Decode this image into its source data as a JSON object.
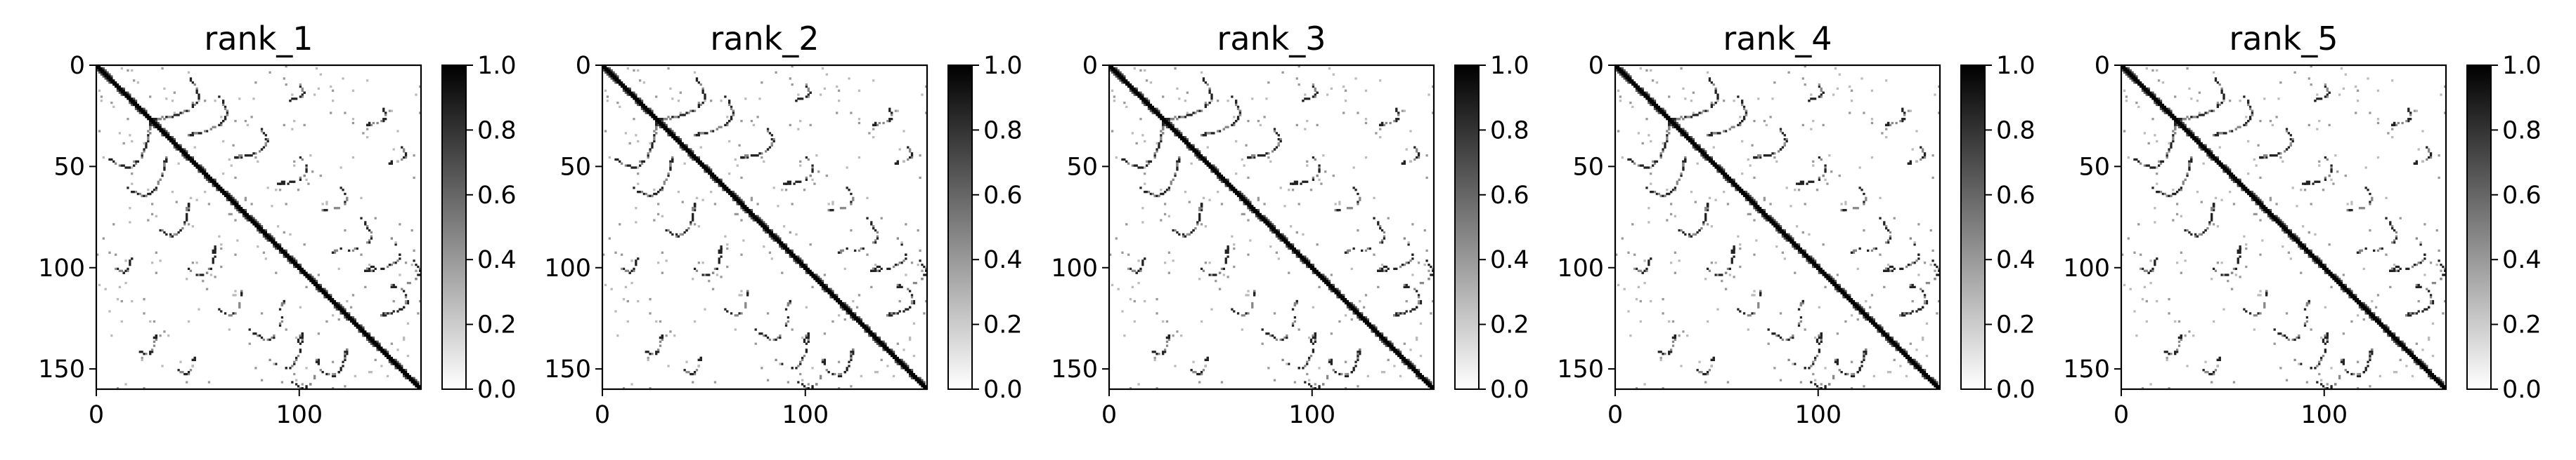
{
  "chart_data": [
    {
      "type": "heatmap",
      "title": "rank_1",
      "colormap": "Greys",
      "xlim": [
        0,
        160
      ],
      "ylim": [
        160,
        0
      ],
      "x_ticks": [
        "0",
        "100"
      ],
      "y_ticks": [
        "0",
        "50",
        "100",
        "150"
      ],
      "colorbar": {
        "range": [
          0.0,
          1.0
        ],
        "ticks": [
          "0.0",
          "0.2",
          "0.4",
          "0.6",
          "0.8",
          "1.0"
        ]
      }
    },
    {
      "type": "heatmap",
      "title": "rank_2",
      "colormap": "Greys",
      "xlim": [
        0,
        160
      ],
      "ylim": [
        160,
        0
      ],
      "x_ticks": [
        "0",
        "100"
      ],
      "y_ticks": [
        "0",
        "50",
        "100",
        "150"
      ],
      "colorbar": {
        "range": [
          0.0,
          1.0
        ],
        "ticks": [
          "0.0",
          "0.2",
          "0.4",
          "0.6",
          "0.8",
          "1.0"
        ]
      }
    },
    {
      "type": "heatmap",
      "title": "rank_3",
      "colormap": "Greys",
      "xlim": [
        0,
        160
      ],
      "ylim": [
        160,
        0
      ],
      "x_ticks": [
        "0",
        "100"
      ],
      "y_ticks": [
        "0",
        "50",
        "100",
        "150"
      ],
      "colorbar": {
        "range": [
          0.0,
          1.0
        ],
        "ticks": [
          "0.0",
          "0.2",
          "0.4",
          "0.6",
          "0.8",
          "1.0"
        ]
      }
    },
    {
      "type": "heatmap",
      "title": "rank_4",
      "colormap": "Greys",
      "xlim": [
        0,
        160
      ],
      "ylim": [
        160,
        0
      ],
      "x_ticks": [
        "0",
        "100"
      ],
      "y_ticks": [
        "0",
        "50",
        "100",
        "150"
      ],
      "colorbar": {
        "range": [
          0.0,
          1.0
        ],
        "ticks": [
          "0.0",
          "0.2",
          "0.4",
          "0.6",
          "0.8",
          "1.0"
        ]
      }
    },
    {
      "type": "heatmap",
      "title": "rank_5",
      "colormap": "Greys",
      "xlim": [
        0,
        160
      ],
      "ylim": [
        160,
        0
      ],
      "x_ticks": [
        "0",
        "100"
      ],
      "y_ticks": [
        "0",
        "50",
        "100",
        "150"
      ],
      "colorbar": {
        "range": [
          0.0,
          1.0
        ],
        "ticks": [
          "0.0",
          "0.2",
          "0.4",
          "0.6",
          "0.8",
          "1.0"
        ]
      }
    }
  ]
}
